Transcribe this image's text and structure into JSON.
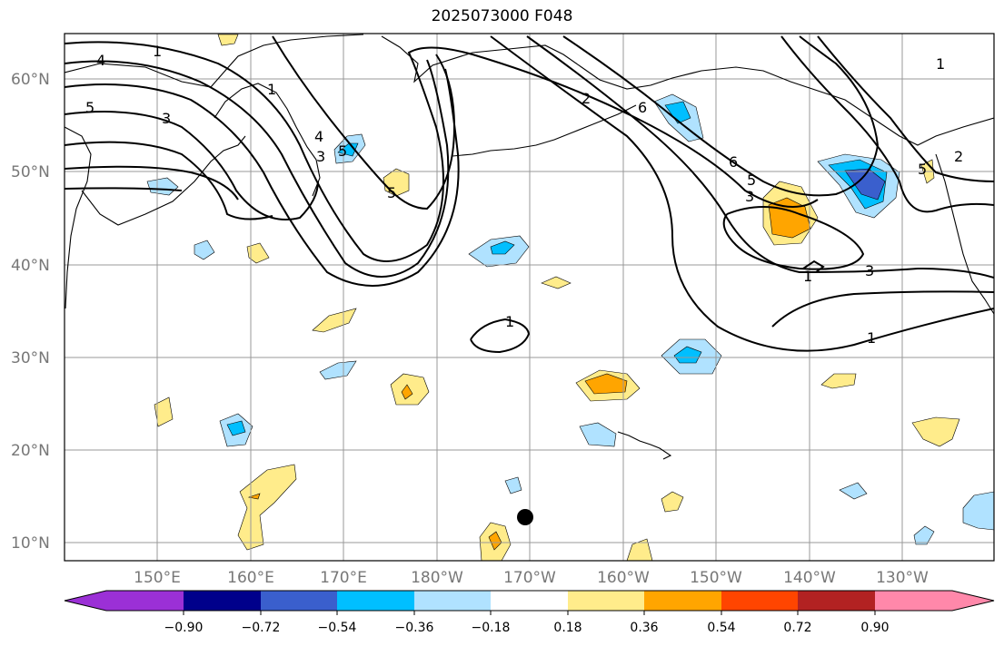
{
  "title": "2025073000 F048",
  "lat_labels": [
    "60°N",
    "50°N",
    "40°N",
    "30°N",
    "20°N",
    "10°N"
  ],
  "lon_labels": [
    "150°E",
    "160°E",
    "170°E",
    "180°W",
    "170°W",
    "160°W",
    "150°W",
    "140°W",
    "130°W"
  ],
  "colorbar": {
    "ticks": [
      "−0.90",
      "−0.72",
      "−0.54",
      "−0.36",
      "−0.18",
      "0.18",
      "0.36",
      "0.54",
      "0.72",
      "0.90"
    ],
    "colors": [
      "#9b30d6",
      "#00008b",
      "#3a5fcd",
      "#00bfff",
      "#b0e2ff",
      "#ffffff",
      "#ffec8b",
      "#ffa500",
      "#ff4500",
      "#b22222",
      "#ff88aa"
    ]
  },
  "contour_labels": [
    "1",
    "4",
    "5",
    "3",
    "1",
    "5",
    "3",
    "4",
    "5",
    "6",
    "1",
    "6",
    "5",
    "3",
    "1",
    "3",
    "1",
    "2",
    "5",
    "2",
    "1"
  ],
  "marker": "storm-center-dot"
}
